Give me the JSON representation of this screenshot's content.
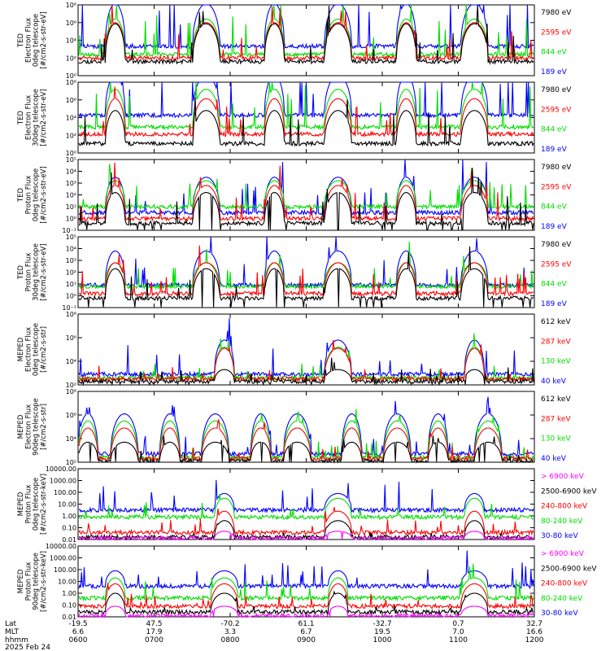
{
  "colors": {
    "black": "#000000",
    "red": "#ff0000",
    "green": "#00dd00",
    "blue": "#0000ff",
    "magenta": "#ff00ff"
  },
  "chart_data": {
    "type": "line",
    "x_axis": {
      "rows": [
        {
          "label": "Lat",
          "values": [
            "-19.5",
            "47.5",
            "-70.2",
            "61.1",
            "-32.7",
            "0.7",
            "32.7"
          ]
        },
        {
          "label": "MLT",
          "values": [
            "6.6",
            "17.9",
            "3.3",
            "6.7",
            "19.5",
            "7.0",
            "16.6"
          ]
        },
        {
          "label": "hhmm",
          "values": [
            "0600",
            "0700",
            "0800",
            "0900",
            "1000",
            "1100",
            "1200"
          ]
        }
      ],
      "date": "2025 Feb 24"
    },
    "panels": [
      {
        "id": "ted-e-0deg",
        "ylabel": [
          "TED",
          "Electron Flux",
          "0deg telescope",
          "[#/cm2-s-str-eV]"
        ],
        "scale": "log",
        "ylim_exp": [
          0,
          8
        ],
        "tick_labels": [
          "10⁰",
          "10²",
          "10⁴",
          "10⁶",
          "10⁸"
        ],
        "series": [
          {
            "name": "7980 eV",
            "color": "black"
          },
          {
            "name": "2595 eV",
            "color": "red"
          },
          {
            "name": "844 eV",
            "color": "green"
          },
          {
            "name": "189 eV",
            "color": "blue"
          }
        ],
        "features": {
          "events": [
            0.08,
            0.28,
            0.43,
            0.57,
            0.72,
            0.87
          ],
          "base": [
            1.2,
            1.5,
            1.8,
            2.5
          ],
          "spike": [
            1.6,
            1.4,
            2.2,
            3.8
          ],
          "hump": [
            3.2,
            3.0,
            3.0,
            3.6
          ]
        }
      },
      {
        "id": "ted-e-30deg",
        "ylabel": [
          "TED",
          "Electron Flux",
          "30deg telescope",
          "[#/cm2-s-str-eV]"
        ],
        "scale": "log",
        "ylim_exp": [
          0,
          8
        ],
        "tick_labels": [
          "10⁰",
          "10²",
          "10⁴",
          "10⁶",
          "10⁸"
        ],
        "series": [
          {
            "name": "7980 eV",
            "color": "black"
          },
          {
            "name": "2595 eV",
            "color": "red"
          },
          {
            "name": "844 eV",
            "color": "green"
          },
          {
            "name": "189 eV",
            "color": "blue"
          }
        ],
        "features": {
          "events": [
            0.08,
            0.28,
            0.43,
            0.57,
            0.72,
            0.87
          ],
          "base": [
            0.8,
            1.6,
            2.2,
            3.2
          ],
          "spike": [
            1.8,
            1.6,
            2.5,
            3.5
          ],
          "hump": [
            2.8,
            3.0,
            3.2,
            3.4
          ]
        }
      },
      {
        "id": "ted-p-0deg",
        "ylabel": [
          "TED",
          "Proton Flux",
          "0deg telescope",
          "[#/cm2-s-str-eV]"
        ],
        "scale": "log",
        "ylim_exp": [
          -1,
          5
        ],
        "tick_labels": [
          "10⁻¹",
          "10⁰",
          "10¹",
          "10²",
          "10³",
          "10⁴",
          "10⁵"
        ],
        "series": [
          {
            "name": "7980 eV",
            "color": "black"
          },
          {
            "name": "2595 eV",
            "color": "red"
          },
          {
            "name": "844 eV",
            "color": "green"
          },
          {
            "name": "189 eV",
            "color": "blue"
          }
        ],
        "features": {
          "events": [
            0.08,
            0.28,
            0.43,
            0.57,
            0.72,
            0.87
          ],
          "base": [
            0.6,
            1.0,
            2.0,
            1.5
          ],
          "spike": [
            1.5,
            1.5,
            1.4,
            2.2
          ],
          "hump": [
            2.6,
            2.8,
            2.2,
            3.0
          ]
        }
      },
      {
        "id": "ted-p-30deg",
        "ylabel": [
          "TED",
          "Proton Flux",
          "30deg telescope",
          "[#/cm2-s-str-eV]"
        ],
        "scale": "log",
        "ylim_exp": [
          -1,
          5
        ],
        "tick_labels": [
          "10⁻¹",
          "10⁰",
          "10¹",
          "10²",
          "10³",
          "10⁴",
          "10⁵"
        ],
        "series": [
          {
            "name": "7980 eV",
            "color": "black"
          },
          {
            "name": "2595 eV",
            "color": "red"
          },
          {
            "name": "844 eV",
            "color": "green"
          },
          {
            "name": "189 eV",
            "color": "blue"
          }
        ],
        "features": {
          "events": [
            0.08,
            0.28,
            0.43,
            0.57,
            0.72,
            0.87
          ],
          "base": [
            0.8,
            1.2,
            1.8,
            1.9
          ],
          "spike": [
            1.4,
            1.4,
            1.3,
            2.0
          ],
          "hump": [
            2.5,
            2.6,
            2.0,
            2.9
          ]
        }
      },
      {
        "id": "meped-e-0deg",
        "ylabel": [
          "MEPED",
          "Electron Flux",
          "0deg telescope",
          "[#/cm2-s-str]"
        ],
        "scale": "log",
        "ylim_exp": [
          2,
          8
        ],
        "tick_labels": [
          "10²",
          "10⁴",
          "10⁶",
          "10⁸"
        ],
        "series": [
          {
            "name": "612 keV",
            "color": "black"
          },
          {
            "name": "287 keV",
            "color": "red"
          },
          {
            "name": "130 keV",
            "color": "green"
          },
          {
            "name": "40 keV",
            "color": "blue"
          }
        ],
        "features": {
          "events": [
            0.32,
            0.57,
            0.87
          ],
          "base": [
            0.3,
            0.5,
            0.6,
            0.9
          ],
          "spike": [
            0.8,
            0.8,
            0.8,
            1.6
          ],
          "hump": [
            1.0,
            2.6,
            2.6,
            2.9
          ]
        }
      },
      {
        "id": "meped-e-90deg",
        "ylabel": [
          "MEPED",
          "Electron Flux",
          "90deg telescope",
          "[#/cm2-s-str]"
        ],
        "scale": "log",
        "ylim_exp": [
          2,
          8
        ],
        "tick_labels": [
          "10²",
          "10⁴",
          "10⁶",
          "10⁸"
        ],
        "series": [
          {
            "name": "612 keV",
            "color": "black"
          },
          {
            "name": "287 keV",
            "color": "red"
          },
          {
            "name": "130 keV",
            "color": "green"
          },
          {
            "name": "40 keV",
            "color": "blue"
          }
        ],
        "features": {
          "events": [
            0.02,
            0.1,
            0.2,
            0.3,
            0.4,
            0.48,
            0.6,
            0.7,
            0.79,
            0.9
          ],
          "base": [
            0.1,
            0.3,
            0.4,
            0.7
          ],
          "spike": [
            0.6,
            0.7,
            0.9,
            1.0
          ],
          "hump": [
            1.6,
            2.6,
            3.1,
            3.4
          ]
        }
      },
      {
        "id": "meped-p-0deg",
        "ylabel": [
          "MEPED",
          "Proton Flux",
          "0deg telescope",
          "[#/cm2-s-str-keV]"
        ],
        "scale": "log",
        "ylim_exp": [
          -2,
          4
        ],
        "tick_labels": [
          "0.01",
          "0.10",
          "1.00",
          "10.00",
          "100.00",
          "1000.00",
          "10000.00"
        ],
        "series": [
          {
            "name": "> 6900 keV",
            "color": "magenta"
          },
          {
            "name": "2500-6900 keV",
            "color": "black"
          },
          {
            "name": "240-800 keV",
            "color": "red"
          },
          {
            "name": "80-240 keV",
            "color": "green"
          },
          {
            "name": "30-80 keV",
            "color": "blue"
          }
        ],
        "features": {
          "events": [
            0.32,
            0.57,
            0.87
          ],
          "base": [
            0.1,
            0.2,
            0.6,
            1.9,
            2.5
          ],
          "spike": [
            0,
            0.2,
            0.8,
            0.8,
            1.6
          ],
          "hump": [
            0.6,
            1.4,
            1.8,
            1.6,
            1.4
          ]
        }
      },
      {
        "id": "meped-p-90deg",
        "ylabel": [
          "MEPED",
          "Proton Flux",
          "90deg telescope",
          "[#/cm2-s-str-keV]"
        ],
        "scale": "log",
        "ylim_exp": [
          -2,
          4
        ],
        "tick_labels": [
          "0.01",
          "0.10",
          "1.00",
          "10.00",
          "100.00",
          "1000.00",
          "10000.00"
        ],
        "series": [
          {
            "name": "> 6900 keV",
            "color": "magenta"
          },
          {
            "name": "2500-6900 keV",
            "color": "black"
          },
          {
            "name": "240-800 keV",
            "color": "red"
          },
          {
            "name": "80-240 keV",
            "color": "green"
          },
          {
            "name": "30-80 keV",
            "color": "blue"
          }
        ],
        "features": {
          "events": [
            0.08,
            0.32,
            0.57,
            0.87
          ],
          "base": [
            0.1,
            0.4,
            0.9,
            1.6,
            2.6
          ],
          "spike": [
            0,
            0.3,
            0.7,
            1.0,
            1.3
          ],
          "hump": [
            0.8,
            1.6,
            1.9,
            1.7,
            1.3
          ]
        }
      }
    ]
  }
}
